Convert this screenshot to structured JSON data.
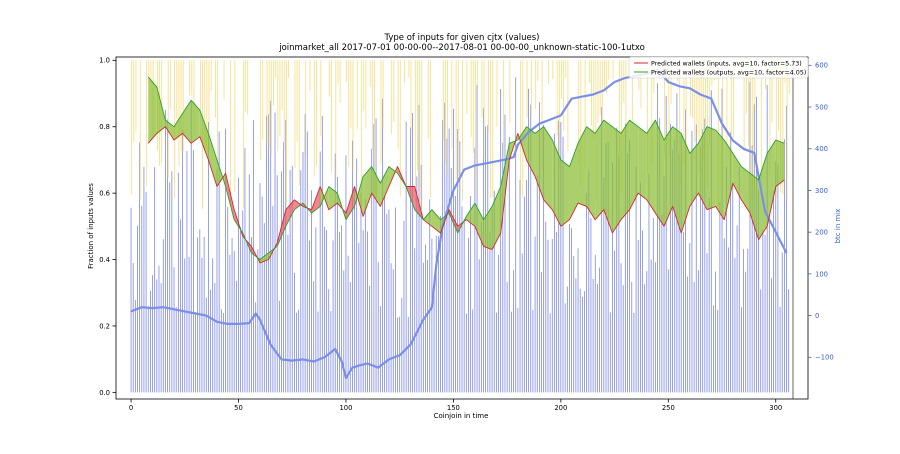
{
  "chart_data": {
    "type": "line",
    "title": "Type of inputs for given cjtx (values)",
    "subtitle": "joinmarket_all 2017-07-01 00-00-00--2017-08-01 00-00-00_unknown-static-100-1utxo",
    "xlabel": "Coinjoin in time",
    "ylabel": "Fraction of inputs values",
    "y2label": "btc in mix",
    "xlim": [
      -7,
      315
    ],
    "ylim": [
      -0.02,
      1.01
    ],
    "y2lim": [
      -200,
      620
    ],
    "x_ticks": [
      0,
      50,
      100,
      150,
      200,
      250,
      300
    ],
    "y_ticks": [
      0.0,
      0.2,
      0.4,
      0.6,
      0.8,
      1.0
    ],
    "y2_ticks": [
      -100,
      0,
      100,
      200,
      300,
      400,
      500,
      600
    ],
    "legend_position": "top-right",
    "colors": {
      "inputs_line": "#d62728",
      "outputs_line": "#2ca02c",
      "fill_green": "#8fbf3a",
      "fill_red": "#e8606a",
      "bars_blue": "#4455dd",
      "bars_yellow": "#f5d76e",
      "btc_line": "#7b8fe8",
      "axis_right": "#3a5fcd"
    },
    "series": [
      {
        "name": "Predicted wallets (inputs, avg=10, factor=5.73)",
        "x": [
          8,
          12,
          16,
          20,
          24,
          28,
          32,
          36,
          40,
          44,
          48,
          52,
          56,
          60,
          64,
          68,
          72,
          76,
          80,
          84,
          88,
          92,
          96,
          100,
          104,
          108,
          112,
          116,
          120,
          124,
          128,
          132,
          136,
          140,
          144,
          148,
          152,
          156,
          160,
          164,
          168,
          172,
          176,
          180,
          184,
          188,
          192,
          196,
          200,
          204,
          208,
          212,
          216,
          220,
          224,
          228,
          232,
          236,
          240,
          244,
          248,
          252,
          256,
          260,
          264,
          268,
          272,
          276,
          280,
          284,
          288,
          292,
          296,
          300,
          304
        ],
        "values": [
          0.75,
          0.78,
          0.8,
          0.76,
          0.78,
          0.75,
          0.77,
          0.7,
          0.62,
          0.66,
          0.55,
          0.47,
          0.44,
          0.39,
          0.4,
          0.45,
          0.55,
          0.58,
          0.56,
          0.55,
          0.62,
          0.55,
          0.57,
          0.54,
          0.62,
          0.53,
          0.6,
          0.56,
          0.62,
          0.68,
          0.62,
          0.62,
          0.52,
          0.5,
          0.48,
          0.55,
          0.5,
          0.52,
          0.5,
          0.44,
          0.43,
          0.48,
          0.7,
          0.78,
          0.7,
          0.65,
          0.58,
          0.55,
          0.5,
          0.52,
          0.57,
          0.56,
          0.52,
          0.55,
          0.48,
          0.52,
          0.55,
          0.6,
          0.58,
          0.54,
          0.5,
          0.56,
          0.48,
          0.56,
          0.6,
          0.55,
          0.56,
          0.52,
          0.63,
          0.58,
          0.54,
          0.46,
          0.5,
          0.62,
          0.64
        ]
      },
      {
        "name": "Predicted wallets (outputs, avg=10, factor=4.05)",
        "x": [
          8,
          12,
          16,
          20,
          24,
          28,
          32,
          36,
          40,
          44,
          48,
          52,
          56,
          60,
          64,
          68,
          72,
          76,
          80,
          84,
          88,
          92,
          96,
          100,
          104,
          108,
          112,
          116,
          120,
          124,
          128,
          132,
          136,
          140,
          144,
          148,
          152,
          156,
          160,
          164,
          168,
          172,
          176,
          180,
          184,
          188,
          192,
          196,
          200,
          204,
          208,
          212,
          216,
          220,
          224,
          228,
          232,
          236,
          240,
          244,
          248,
          252,
          256,
          260,
          264,
          268,
          272,
          276,
          280,
          284,
          288,
          292,
          296,
          300,
          304
        ],
        "values": [
          0.95,
          0.92,
          0.82,
          0.8,
          0.84,
          0.88,
          0.85,
          0.78,
          0.7,
          0.62,
          0.52,
          0.48,
          0.42,
          0.4,
          0.42,
          0.44,
          0.5,
          0.55,
          0.57,
          0.54,
          0.56,
          0.62,
          0.6,
          0.52,
          0.56,
          0.65,
          0.68,
          0.63,
          0.68,
          0.66,
          0.62,
          0.55,
          0.52,
          0.55,
          0.52,
          0.54,
          0.48,
          0.53,
          0.57,
          0.52,
          0.56,
          0.62,
          0.75,
          0.76,
          0.8,
          0.78,
          0.8,
          0.76,
          0.7,
          0.68,
          0.75,
          0.8,
          0.78,
          0.82,
          0.8,
          0.78,
          0.82,
          0.8,
          0.78,
          0.82,
          0.76,
          0.8,
          0.78,
          0.72,
          0.75,
          0.8,
          0.79,
          0.76,
          0.72,
          0.68,
          0.66,
          0.64,
          0.72,
          0.76,
          0.75
        ]
      },
      {
        "name": "btc in mix",
        "axis": "right",
        "x": [
          0,
          5,
          10,
          15,
          20,
          25,
          30,
          35,
          40,
          45,
          50,
          55,
          58,
          60,
          65,
          70,
          75,
          80,
          85,
          90,
          95,
          98,
          100,
          103,
          106,
          110,
          115,
          120,
          125,
          130,
          133,
          136,
          140,
          142,
          145,
          150,
          155,
          160,
          165,
          170,
          172,
          175,
          178,
          180,
          185,
          190,
          195,
          200,
          205,
          210,
          215,
          220,
          225,
          230,
          235,
          240,
          245,
          250,
          255,
          260,
          265,
          270,
          275,
          280,
          285,
          290,
          295,
          300,
          305
        ],
        "values": [
          10,
          20,
          18,
          20,
          15,
          10,
          5,
          0,
          -15,
          -20,
          -20,
          -18,
          5,
          -10,
          -70,
          -105,
          -108,
          -105,
          -110,
          -100,
          -80,
          -110,
          -150,
          -125,
          -120,
          -115,
          -125,
          -105,
          -95,
          -70,
          -40,
          -10,
          20,
          120,
          215,
          300,
          350,
          360,
          365,
          370,
          372,
          375,
          380,
          410,
          440,
          460,
          470,
          480,
          520,
          525,
          530,
          540,
          560,
          570,
          575,
          580,
          590,
          560,
          550,
          545,
          530,
          520,
          460,
          420,
          400,
          390,
          250,
          200,
          150
        ]
      }
    ],
    "bar_counts": {
      "x_start": 0,
      "x_end": 306,
      "count": 307
    }
  }
}
